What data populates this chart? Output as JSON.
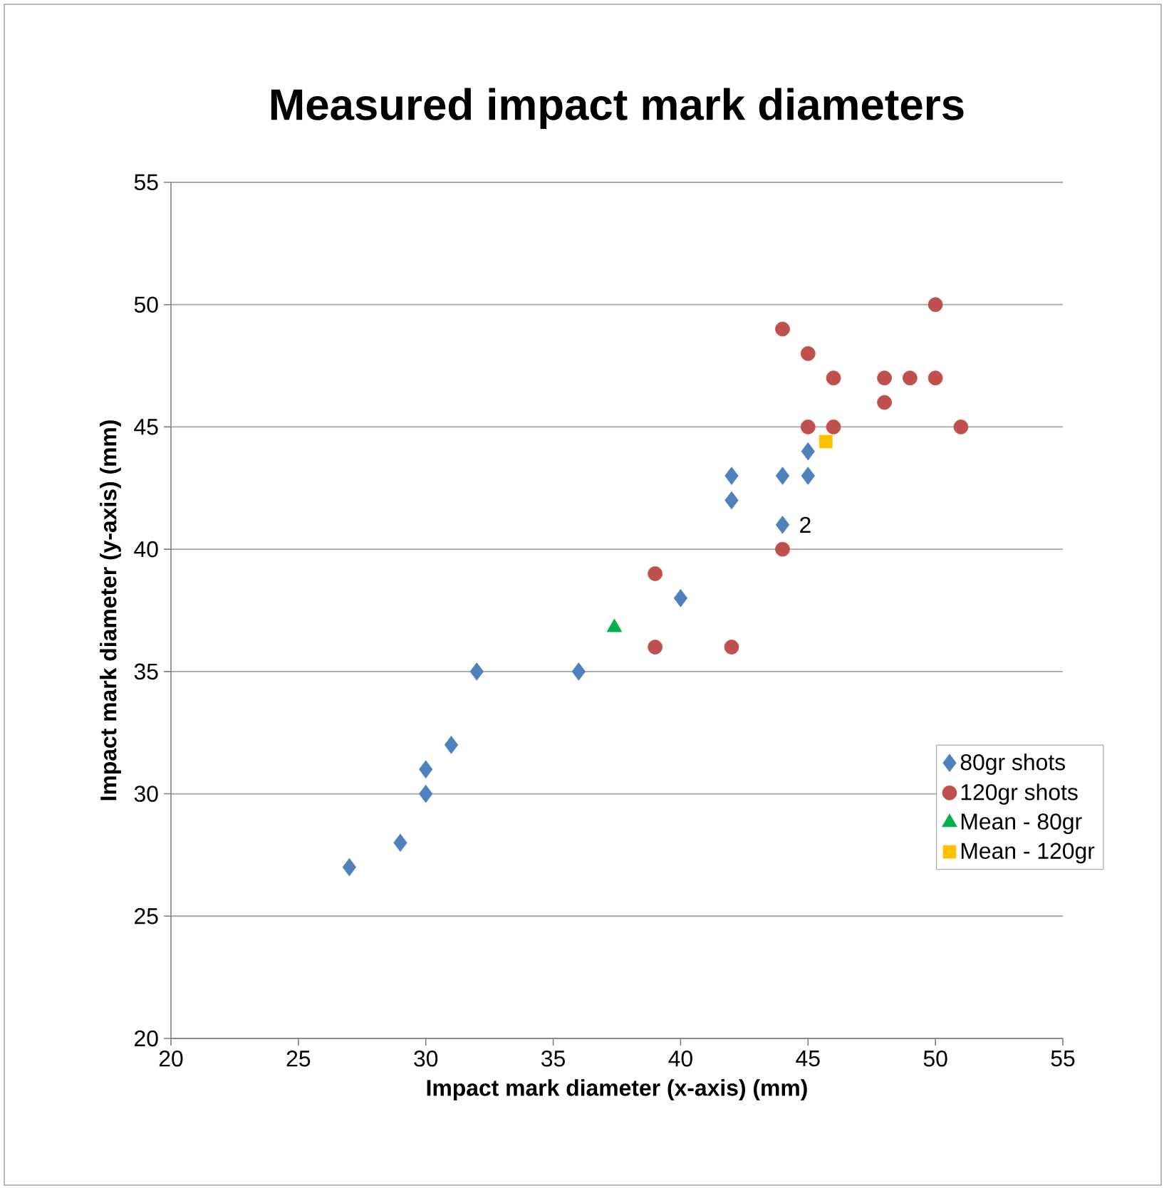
{
  "chart_data": {
    "type": "scatter",
    "title": "Measured impact mark diameters",
    "xlabel": "Impact mark diameter (x-axis) (mm)",
    "ylabel": "Impact mark diameter (y-axis) (mm)",
    "xlim": [
      20,
      55
    ],
    "xticks": [
      20,
      25,
      30,
      35,
      40,
      45,
      50,
      55
    ],
    "ylim": [
      20,
      55
    ],
    "yticks": [
      20,
      25,
      30,
      35,
      40,
      45,
      50,
      55
    ],
    "grid": "y",
    "legend": "bottom right",
    "series": [
      {
        "name": "80gr shots",
        "color": "#4f81bd",
        "marker": "diamond",
        "x": [
          27,
          29,
          30,
          30,
          31,
          32,
          36,
          40,
          42,
          42,
          44,
          44,
          45,
          45
        ],
        "values": [
          27,
          28,
          30,
          31,
          32,
          35,
          35,
          38,
          42,
          43,
          41,
          43,
          43,
          44
        ]
      },
      {
        "name": "120gr shots",
        "color": "#c0504d",
        "marker": "circle",
        "x": [
          44,
          45,
          46,
          48,
          49,
          50,
          50,
          48,
          45,
          46,
          51,
          44,
          39,
          39,
          42
        ],
        "values": [
          49,
          48,
          47,
          47,
          47,
          50,
          47,
          46,
          45,
          45,
          45,
          40,
          39,
          36,
          36
        ]
      },
      {
        "name": "Mean - 80gr",
        "color": "#00b050",
        "marker": "triangle",
        "x": [
          37.4
        ],
        "values": [
          36.8
        ]
      },
      {
        "name": "Mean - 120gr",
        "color": "#ffc000",
        "marker": "square",
        "x": [
          45.7
        ],
        "values": [
          44.4
        ]
      }
    ],
    "annotations": [
      {
        "text": "2",
        "x": 44,
        "y": 41
      }
    ]
  }
}
